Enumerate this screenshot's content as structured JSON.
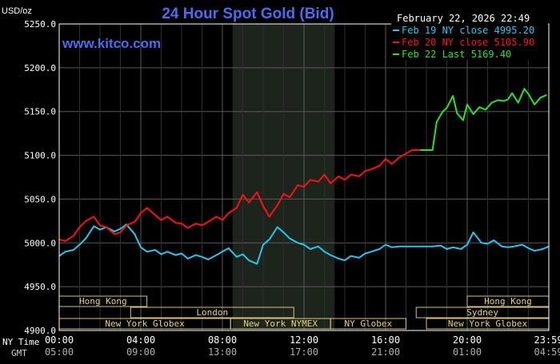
{
  "chart_data": {
    "type": "line",
    "title": "24 Hour Spot Gold (Bid)",
    "watermark": "www.kitco.com",
    "date_label": "February 22, 2026 22:49",
    "unit_label": "USD/oz",
    "ylim": [
      4900,
      5250
    ],
    "y_ticks": [
      "5250.0",
      "5200.0",
      "5150.0",
      "5100.0",
      "5050.0",
      "5000.0",
      "4950.0",
      "4900.0"
    ],
    "x_axis_ny_name": "NY Time",
    "x_axis_gmt_name": "GMT",
    "x_ticks_ny": [
      "00:00",
      "04:00",
      "08:00",
      "12:00",
      "16:00",
      "20:00",
      "23:59"
    ],
    "x_ticks_gmt": [
      "05:00",
      "09:00",
      "13:00",
      "17:00",
      "21:00",
      "01:00",
      "04:59"
    ],
    "x_tick_hours": [
      0,
      4,
      8,
      12,
      16,
      20,
      23.983
    ],
    "xlim": [
      0,
      24
    ],
    "shaded_hours": [
      8.5,
      13.5
    ],
    "grid": true,
    "legend_position": "top-right",
    "series": [
      {
        "name": "Feb 19 NY close 4995.20",
        "color": "#22c8f0",
        "x": [
          0,
          0.3,
          0.7,
          1.0,
          1.3,
          1.7,
          2.0,
          2.3,
          2.7,
          3.0,
          3.3,
          3.7,
          4.0,
          4.3,
          4.7,
          5.0,
          5.3,
          5.7,
          6.0,
          6.3,
          6.7,
          7.0,
          7.3,
          7.7,
          8.0,
          8.3,
          8.7,
          9.0,
          9.3,
          9.7,
          10.0,
          10.3,
          10.7,
          11.0,
          11.3,
          11.7,
          12.0,
          12.3,
          12.7,
          13.0,
          13.3,
          13.7,
          14.0,
          14.3,
          14.7,
          15.0,
          15.3,
          15.7,
          16.0,
          16.3,
          16.7,
          17.0,
          17.3,
          17.7,
          18.0,
          18.3,
          18.7,
          19.0,
          19.3,
          19.7,
          20.0,
          20.3,
          20.7,
          21.0,
          21.3,
          21.7,
          22.0,
          22.3,
          22.7,
          23.0,
          23.3,
          23.7,
          24.0
        ],
        "y": [
          4985,
          4990,
          4992,
          4998,
          5005,
          5019,
          5015,
          5018,
          5013,
          5016,
          5021,
          5010,
          4995,
          4990,
          4992,
          4987,
          4990,
          4986,
          4988,
          4982,
          4986,
          4984,
          4981,
          4986,
          4990,
          4994,
          4984,
          4987,
          4980,
          4976,
          4998,
          5004,
          5018,
          5012,
          5005,
          5000,
          4998,
          4993,
          4996,
          4990,
          4986,
          4982,
          4980,
          4985,
          4983,
          4988,
          4990,
          4993,
          4998,
          4995,
          4996,
          4996,
          4996,
          4996,
          4996,
          4996,
          4997,
          4993,
          4995,
          4993,
          4998,
          5012,
          5000,
          4999,
          5003,
          4996,
          4995,
          4996,
          4998,
          4994,
          4991,
          4993,
          4996
        ]
      },
      {
        "name": "Feb 20 NY close 5105.90",
        "color": "#ff1010",
        "x": [
          0,
          0.3,
          0.7,
          1.0,
          1.3,
          1.7,
          2.0,
          2.3,
          2.7,
          3.0,
          3.3,
          3.7,
          4.0,
          4.3,
          4.7,
          5.0,
          5.3,
          5.7,
          6.0,
          6.3,
          6.7,
          7.0,
          7.3,
          7.7,
          8.0,
          8.3,
          8.7,
          9.0,
          9.3,
          9.7,
          10.0,
          10.3,
          10.7,
          11.0,
          11.3,
          11.7,
          12.0,
          12.3,
          12.7,
          13.0,
          13.3,
          13.7,
          14.0,
          14.3,
          14.7,
          15.0,
          15.3,
          15.7,
          16.0,
          16.3,
          16.7,
          17.0,
          17.3,
          17.7
        ],
        "y": [
          5004,
          5002,
          5008,
          5018,
          5025,
          5030,
          5020,
          5018,
          5010,
          5012,
          5020,
          5024,
          5034,
          5040,
          5032,
          5026,
          5030,
          5023,
          5022,
          5017,
          5022,
          5020,
          5024,
          5030,
          5026,
          5034,
          5040,
          5055,
          5046,
          5058,
          5042,
          5030,
          5043,
          5056,
          5052,
          5066,
          5064,
          5072,
          5070,
          5078,
          5068,
          5076,
          5072,
          5078,
          5076,
          5082,
          5084,
          5088,
          5096,
          5090,
          5098,
          5102,
          5106,
          5106
        ]
      },
      {
        "name": "Feb 22 Last 5169.40",
        "color": "#22e622",
        "x": [
          17.7,
          18.0,
          18.3,
          18.5,
          18.8,
          19.0,
          19.3,
          19.5,
          19.8,
          20.0,
          20.3,
          20.6,
          20.9,
          21.2,
          21.5,
          21.8,
          22.0,
          22.2,
          22.5,
          22.8,
          23.0,
          23.3,
          23.6,
          23.9
        ],
        "y": [
          5106,
          5106,
          5106,
          5138,
          5150,
          5154,
          5168,
          5148,
          5140,
          5158,
          5147,
          5155,
          5152,
          5160,
          5163,
          5162,
          5164,
          5171,
          5160,
          5176,
          5170,
          5158,
          5166,
          5169
        ]
      }
    ],
    "sessions": [
      {
        "label": "Hong Kong",
        "row": 0,
        "start": 0,
        "end": 4.3
      },
      {
        "label": "Hong Kong",
        "row": 0,
        "start": 20.0,
        "end": 24
      },
      {
        "label": "London",
        "row": 1,
        "start": 3.5,
        "end": 11.5
      },
      {
        "label": "Sydney",
        "row": 1,
        "start": 17.5,
        "end": 24
      },
      {
        "label": "New York Globex",
        "row": 2,
        "start": 0,
        "end": 8.4
      },
      {
        "label": "New York NYMEX",
        "row": 2,
        "start": 8.4,
        "end": 13.3
      },
      {
        "label": "NY Globex",
        "row": 2,
        "start": 13.3,
        "end": 17.0
      },
      {
        "label": "New York Globex",
        "row": 2,
        "start": 18.0,
        "end": 24
      }
    ]
  }
}
